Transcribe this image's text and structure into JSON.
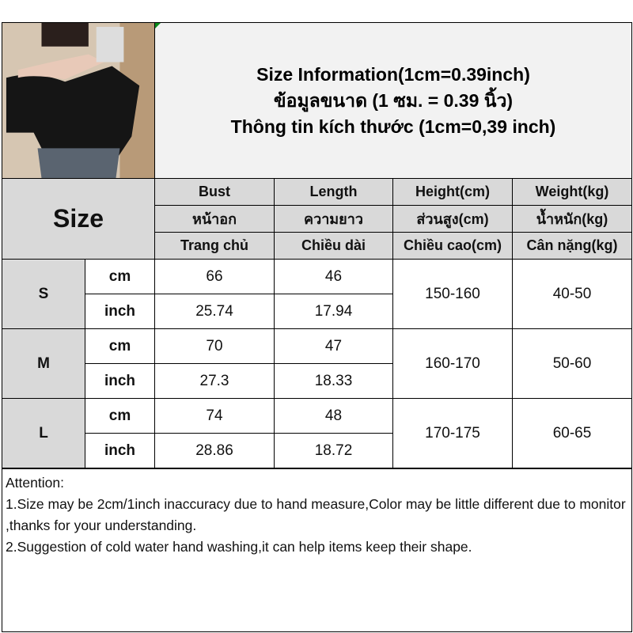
{
  "title": {
    "line1": "Size Information(1cm=0.39inch)",
    "line2": "ข้อมูลขนาด (1 ซม. = 0.39 นิ้ว)",
    "line3": "Thông tin kích thước (1cm=0,39 inch)"
  },
  "table": {
    "size_label": "Size",
    "headers": [
      {
        "en": "Bust",
        "th": "หน้าอก",
        "vi": "Trang chủ"
      },
      {
        "en": "Length",
        "th": "ความยาว",
        "vi": "Chiều dài"
      },
      {
        "en": "Height(cm)",
        "th": "ส่วนสูง(cm)",
        "vi": "Chiều cao(cm)"
      },
      {
        "en": "Weight(kg)",
        "th": "น้ำหนัก(kg)",
        "vi": "Cân nặng(kg)"
      }
    ],
    "rows": [
      {
        "size": "S",
        "unit_cm": "cm",
        "unit_inch": "inch",
        "bust_cm": "66",
        "length_cm": "46",
        "bust_inch": "25.74",
        "length_inch": "17.94",
        "height": "150-160",
        "weight": "40-50"
      },
      {
        "size": "M",
        "unit_cm": "cm",
        "unit_inch": "inch",
        "bust_cm": "70",
        "length_cm": "47",
        "bust_inch": "27.3",
        "length_inch": "18.33",
        "height": "160-170",
        "weight": "50-60"
      },
      {
        "size": "L",
        "unit_cm": "cm",
        "unit_inch": "inch",
        "bust_cm": "74",
        "length_cm": "48",
        "bust_inch": "28.86",
        "length_inch": "18.72",
        "height": "170-175",
        "weight": "60-65"
      }
    ]
  },
  "attention": {
    "heading": "Attention:",
    "line1": "1.Size may be 2cm/1inch inaccuracy due to hand measure,Color may be little different due to monitor ,thanks for your understanding.",
    "line2": "2.Suggestion of cold water hand washing,it can help items keep their shape."
  }
}
